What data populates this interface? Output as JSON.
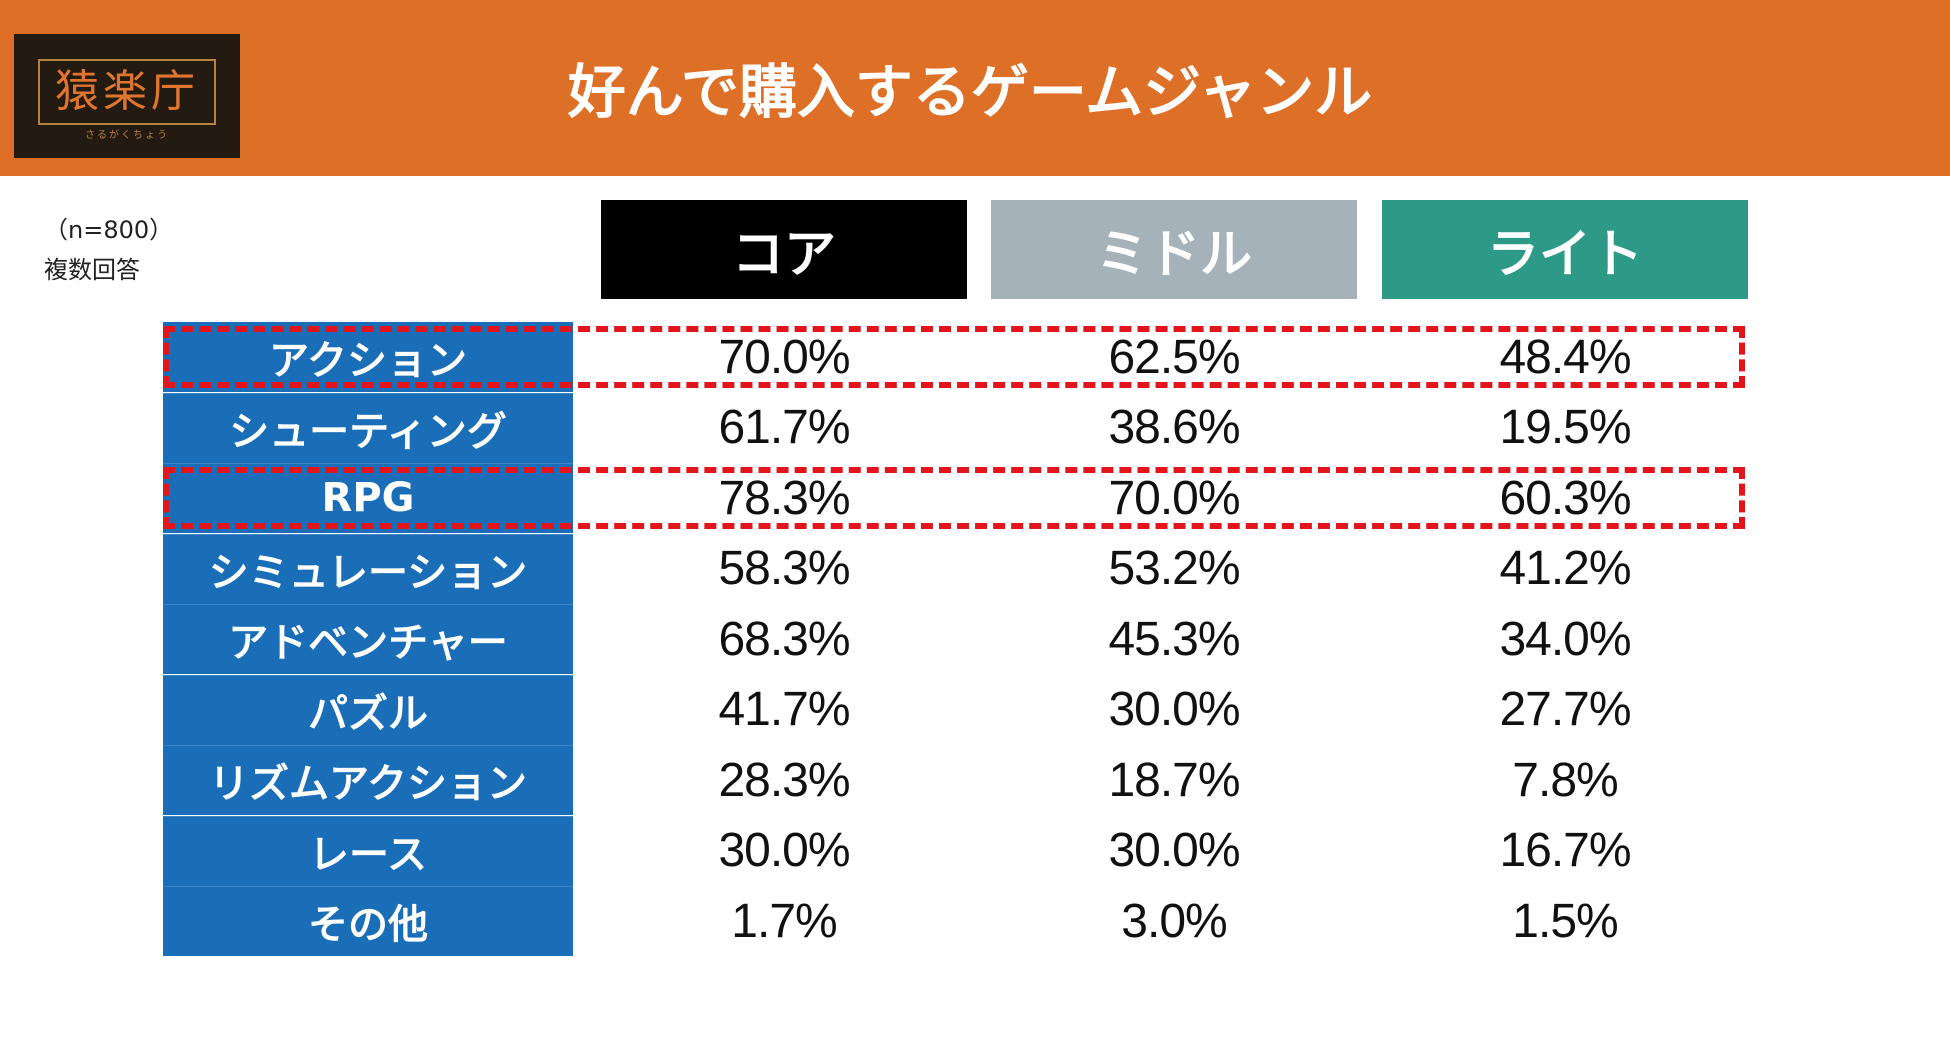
{
  "header": {
    "title": "好んで購入するゲームジャンル",
    "logo_name": "猿楽庁",
    "logo_sub": "さるがくちょう",
    "bg_color": "#dd6f27"
  },
  "note": {
    "sample": "（n=800）",
    "multi": "複数回答"
  },
  "columns": [
    {
      "label": "コア",
      "color": "#000000"
    },
    {
      "label": "ミドル",
      "color": "#a6b2b9"
    },
    {
      "label": "ライト",
      "color": "#2c9a87"
    }
  ],
  "rows": [
    {
      "label": "アクション",
      "values": [
        "70.0%",
        "62.5%",
        "48.4%"
      ],
      "highlight": true
    },
    {
      "label": "シューティング",
      "values": [
        "61.7%",
        "38.6%",
        "19.5%"
      ],
      "highlight": false
    },
    {
      "label": "RPG",
      "values": [
        "78.3%",
        "70.0%",
        "60.3%"
      ],
      "highlight": true
    },
    {
      "label": "シミュレーション",
      "values": [
        "58.3%",
        "53.2%",
        "41.2%"
      ],
      "highlight": false
    },
    {
      "label": "アドベンチャー",
      "values": [
        "68.3%",
        "45.3%",
        "34.0%"
      ],
      "highlight": false
    },
    {
      "label": "パズル",
      "values": [
        "41.7%",
        "30.0%",
        "27.7%"
      ],
      "highlight": false
    },
    {
      "label": "リズムアクション",
      "values": [
        "28.3%",
        "18.7%",
        "7.8%"
      ],
      "highlight": false
    },
    {
      "label": "レース",
      "values": [
        "30.0%",
        "30.0%",
        "16.7%"
      ],
      "highlight": false
    },
    {
      "label": "その他",
      "values": [
        "1.7%",
        "3.0%",
        "1.5%"
      ],
      "highlight": false
    }
  ],
  "chart_data": {
    "type": "table",
    "title": "好んで購入するゲームジャンル",
    "columns": [
      "コア",
      "ミドル",
      "ライト"
    ],
    "rows": [
      "アクション",
      "シューティング",
      "RPG",
      "シミュレーション",
      "アドベンチャー",
      "パズル",
      "リズムアクション",
      "レース",
      "その他"
    ],
    "series": [
      {
        "name": "コア",
        "values": [
          70.0,
          61.7,
          78.3,
          58.3,
          68.3,
          41.7,
          28.3,
          30.0,
          1.7
        ]
      },
      {
        "name": "ミドル",
        "values": [
          62.5,
          38.6,
          70.0,
          53.2,
          45.3,
          30.0,
          18.7,
          30.0,
          3.0
        ]
      },
      {
        "name": "ライト",
        "values": [
          48.4,
          19.5,
          60.3,
          41.2,
          34.0,
          27.7,
          7.8,
          16.7,
          1.5
        ]
      }
    ],
    "unit": "%",
    "highlighted_rows": [
      "アクション",
      "RPG"
    ]
  }
}
